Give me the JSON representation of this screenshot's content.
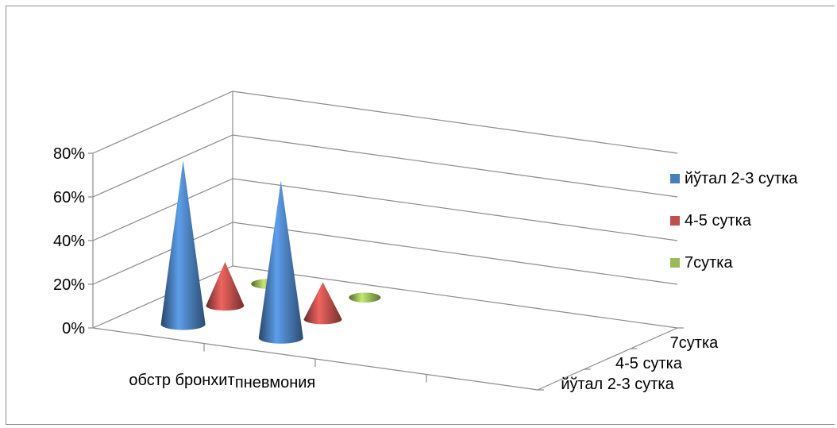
{
  "chart_data": {
    "type": "bar",
    "subtype": "3d-cone",
    "title": "",
    "categories": [
      "обстр бронхит",
      "пневмония"
    ],
    "series": [
      {
        "name": "йўтал 2-3 сутка",
        "values": [
          75,
          72
        ],
        "color": "#4a7ebb"
      },
      {
        "name": "4-5 сутка",
        "values": [
          20,
          17
        ],
        "color": "#c0504d"
      },
      {
        "name": "7сутка",
        "values": [
          3,
          3
        ],
        "color": "#9bbb59"
      }
    ],
    "y_ticks": [
      "0%",
      "20%",
      "40%",
      "60%",
      "80%"
    ],
    "depth_labels": [
      "7сутка",
      "4-5 сутка",
      "йўтал 2-3 сутка"
    ],
    "ylim": [
      0,
      80
    ],
    "grid": true,
    "legend": "right"
  }
}
